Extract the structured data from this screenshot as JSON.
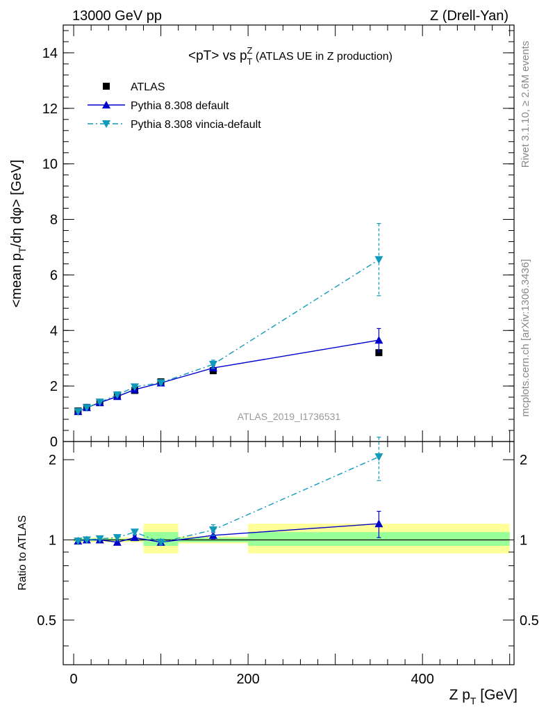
{
  "header": {
    "left": "13000 GeV pp",
    "right": "Z (Drell-Yan)"
  },
  "side_text": {
    "rivet": "Rivet 3.1.10, ≥ 2.6M events",
    "mcplots": "mcplots.cern.ch [arXiv:1306.3436]"
  },
  "chart_data": {
    "type": "line",
    "title": "<pT> vs pTZ (ATLAS UE in Z production)",
    "analysis_label": "ATLAS_2019_I1736531",
    "xlabel": "Z pT [GeV]",
    "ylabel": "<mean pT/dη dφ> [GeV]",
    "ratio_ylabel": "Ratio to ATLAS",
    "xlim": [
      -12,
      505
    ],
    "ylim": [
      0,
      15
    ],
    "ratio_ylim": [
      0.34,
      2.34
    ],
    "ratio_log_scale": true,
    "x_ticks": [
      0,
      200,
      400
    ],
    "y_ticks": [
      0,
      2,
      4,
      6,
      8,
      10,
      12,
      14
    ],
    "ratio_ticks": [
      0.5,
      1,
      2
    ],
    "legend_position": "top-left",
    "series": [
      {
        "name": "ATLAS",
        "color": "#000000",
        "marker": "square",
        "x": [
          5,
          15,
          30,
          50,
          70,
          100,
          160,
          350
        ],
        "y": [
          1.1,
          1.23,
          1.4,
          1.65,
          1.84,
          2.15,
          2.55,
          3.2
        ]
      },
      {
        "name": "Pythia 8.308 default",
        "color": "#0000cc",
        "marker": "triangle-up",
        "line": "solid",
        "x": [
          5,
          15,
          30,
          50,
          70,
          100,
          160,
          350
        ],
        "y": [
          1.08,
          1.22,
          1.4,
          1.62,
          1.87,
          2.11,
          2.65,
          3.65
        ],
        "y_err": [
          0.02,
          0.02,
          0.02,
          0.03,
          0.04,
          0.05,
          0.1,
          0.42
        ]
      },
      {
        "name": "Pythia 8.308 vincia-default",
        "color": "#1099bb",
        "marker": "triangle-down",
        "line": "dash-dot",
        "x": [
          5,
          15,
          30,
          50,
          70,
          100,
          160,
          350
        ],
        "y": [
          1.08,
          1.22,
          1.42,
          1.68,
          1.97,
          2.12,
          2.78,
          6.55
        ],
        "y_err": [
          0.02,
          0.02,
          0.02,
          0.03,
          0.05,
          0.06,
          0.15,
          1.3
        ]
      }
    ],
    "ratio_series": [
      {
        "name": "Pythia 8.308 default",
        "x": [
          5,
          15,
          30,
          50,
          70,
          100,
          160,
          350
        ],
        "y": [
          0.99,
          1.0,
          1.0,
          0.98,
          1.02,
          0.98,
          1.04,
          1.15
        ],
        "y_err": [
          0.01,
          0.01,
          0.01,
          0.01,
          0.02,
          0.02,
          0.03,
          0.13
        ]
      },
      {
        "name": "Pythia 8.308 vincia-default",
        "x": [
          5,
          15,
          30,
          50,
          70,
          100,
          160,
          350
        ],
        "y": [
          0.99,
          1.0,
          1.01,
          1.02,
          1.07,
          0.98,
          1.09,
          2.05
        ],
        "y_err": [
          0.01,
          0.01,
          0.01,
          0.01,
          0.02,
          0.02,
          0.05,
          0.38
        ]
      }
    ],
    "uncertainty_bands": [
      {
        "x_range": [
          0,
          80
        ],
        "stat": [
          0.99,
          1.01
        ],
        "total": [
          0.98,
          1.02
        ]
      },
      {
        "x_range": [
          80,
          120
        ],
        "stat": [
          0.95,
          1.07
        ],
        "total": [
          0.89,
          1.15
        ]
      },
      {
        "x_range": [
          120,
          200
        ],
        "stat": [
          0.98,
          1.02
        ],
        "total": [
          0.97,
          1.03
        ]
      },
      {
        "x_range": [
          200,
          500
        ],
        "stat": [
          0.95,
          1.07
        ],
        "total": [
          0.89,
          1.15
        ]
      }
    ],
    "band_colors": {
      "stat": "#99ff99",
      "total": "#ffff99"
    }
  }
}
